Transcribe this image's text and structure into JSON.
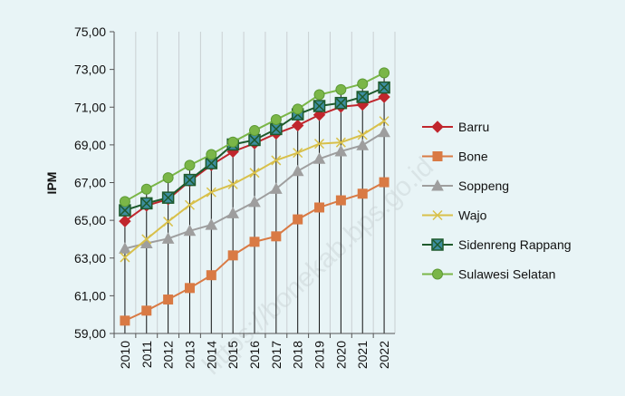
{
  "chart_data": {
    "type": "line",
    "ylabel": "IPM",
    "xlabel": "",
    "ylim": [
      59,
      75
    ],
    "yticks": [
      "59,00",
      "61,00",
      "63,00",
      "65,00",
      "67,00",
      "69,00",
      "71,00",
      "73,00",
      "75,00"
    ],
    "categories": [
      "2010",
      "2011",
      "2012",
      "2013",
      "2014",
      "2015",
      "2016",
      "2017",
      "2018",
      "2019",
      "2020",
      "2021",
      "2022"
    ],
    "grid": "vertical",
    "legend_position": "right",
    "series": [
      {
        "name": "Barru",
        "color": "#c0262d",
        "marker": "diamond",
        "values": [
          64.95,
          65.78,
          66.12,
          67.08,
          67.93,
          68.64,
          69.08,
          69.6,
          70.03,
          70.59,
          71.02,
          71.13,
          71.54
        ]
      },
      {
        "name": "Bone",
        "color": "#d97a44",
        "marker": "square",
        "values": [
          59.68,
          60.21,
          60.8,
          61.41,
          62.09,
          63.14,
          63.86,
          64.15,
          65.05,
          65.68,
          66.06,
          66.41,
          67.02
        ]
      },
      {
        "name": "Soppeng",
        "color": "#9e9e9e",
        "marker": "triangle",
        "values": [
          63.5,
          63.78,
          64.03,
          64.44,
          64.76,
          65.37,
          65.97,
          66.67,
          67.61,
          68.26,
          68.66,
          68.98,
          69.68
        ]
      },
      {
        "name": "Wajo",
        "color": "#d8c04a",
        "marker": "x",
        "values": [
          63.04,
          64.0,
          64.93,
          65.81,
          66.49,
          66.91,
          67.52,
          68.18,
          68.58,
          69.06,
          69.13,
          69.53,
          70.26
        ]
      },
      {
        "name": "Sidenreng Rappang",
        "color": "#1e5a2c",
        "marker": "boxx",
        "values": [
          65.53,
          65.9,
          66.2,
          67.14,
          68.03,
          69.02,
          69.26,
          69.84,
          70.62,
          71.06,
          71.22,
          71.54,
          72.04
        ]
      },
      {
        "name": "Sulawesi Selatan",
        "color": "#7ab648",
        "marker": "circle",
        "values": [
          66.0,
          66.65,
          67.26,
          67.92,
          68.49,
          69.15,
          69.76,
          70.34,
          70.9,
          71.66,
          71.93,
          72.24,
          72.82
        ]
      }
    ]
  },
  "watermark": "https://bonekab.bps.go.id"
}
